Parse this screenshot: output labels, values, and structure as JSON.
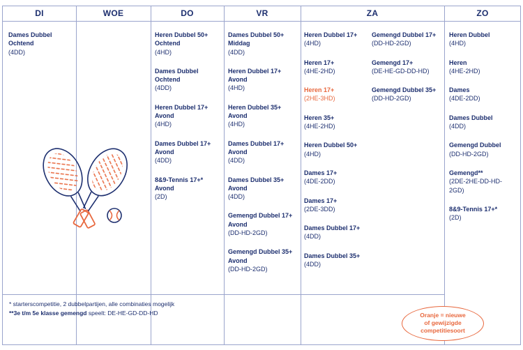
{
  "days": [
    "DI",
    "WOE",
    "DO",
    "VR",
    "ZA",
    "ZO"
  ],
  "columns": {
    "di": [
      {
        "name": "Dames Dubbel\nOchtend",
        "code": "(4DD)"
      }
    ],
    "do": [
      {
        "name": "Heren Dubbel 50+\nOchtend",
        "code": "(4HD)"
      },
      {
        "name": "Dames Dubbel\nOchtend",
        "code": "(4DD)"
      },
      {
        "name": "Heren Dubbel 17+\nAvond",
        "code": "(4HD)"
      },
      {
        "name": "Dames Dubbel 17+\nAvond",
        "code": "(4DD)"
      },
      {
        "name": "8&9-Tennis 17+*\nAvond",
        "code": "(2D)"
      }
    ],
    "vr": [
      {
        "name": "Dames Dubbel 50+\nMiddag",
        "code": "(4DD)"
      },
      {
        "name": "Heren Dubbel 17+\nAvond",
        "code": "(4HD)"
      },
      {
        "name": "Heren Dubbel 35+\nAvond",
        "code": "(4HD)"
      },
      {
        "name": "Dames Dubbel 17+\nAvond",
        "code": "(4DD)"
      },
      {
        "name": "Dames Dubbel 35+\nAvond",
        "code": "(4DD)"
      },
      {
        "name": "Gemengd Dubbel 17+\nAvond",
        "code": "(DD-HD-2GD)"
      },
      {
        "name": "Gemengd Dubbel 35+\nAvond",
        "code": "(DD-HD-2GD)"
      }
    ],
    "za_left": [
      {
        "name": "Heren Dubbel 17+",
        "code": "(4HD)"
      },
      {
        "name": "Heren 17+",
        "code": "(4HE-2HD)"
      },
      {
        "name": "Heren 17+",
        "code": "(2HE-3HD)",
        "highlight": true
      },
      {
        "name": "Heren 35+",
        "code": "(4HE-2HD)"
      },
      {
        "name": "Heren Dubbel 50+",
        "code": "(4HD)"
      },
      {
        "name": "Dames 17+",
        "code": "(4DE-2DD)"
      },
      {
        "name": "Dames 17+",
        "code": "(2DE-3DD)"
      },
      {
        "name": "Dames Dubbel 17+",
        "code": "(4DD)"
      },
      {
        "name": "Dames Dubbel 35+",
        "code": "(4DD)"
      }
    ],
    "za_right": [
      {
        "name": "Gemengd Dubbel 17+",
        "code": "(DD-HD-2GD)"
      },
      {
        "name": "Gemengd 17+",
        "code": "(DE-HE-GD-DD-HD)"
      },
      {
        "name": "Gemengd Dubbel 35+",
        "code": "(DD-HD-2GD)"
      }
    ],
    "zo": [
      {
        "name": "Heren Dubbel",
        "code": "(4HD)"
      },
      {
        "name": "Heren",
        "code": "(4HE-2HD)"
      },
      {
        "name": "Dames",
        "code": "(4DE-2DD)"
      },
      {
        "name": "Dames Dubbel",
        "code": "(4DD)"
      },
      {
        "name": "Gemengd Dubbel",
        "code": "(DD-HD-2GD)"
      },
      {
        "name": "Gemengd**",
        "code": "(2DE-2HE-DD-HD-\n2GD)"
      },
      {
        "name": "8&9-Tennis 17+*",
        "code": "(2D)"
      }
    ]
  },
  "notes": {
    "note1": "* starterscompetitie, 2 dubbelpartijen, alle combinaties mogelijk",
    "note2_bold": "**3e t/m 5e klasse gemengd",
    "note2_rest": " speelt: DE-HE-GD-DD-HD"
  },
  "legend": "Oranje = nieuwe\nof gewijzigde\ncompetitiesoort",
  "colors": {
    "navy": "#1d2f6f",
    "orange": "#e8683e",
    "grid": "#9aa4cc"
  },
  "illustration": "crossed-tennis-rackets-with-ball"
}
